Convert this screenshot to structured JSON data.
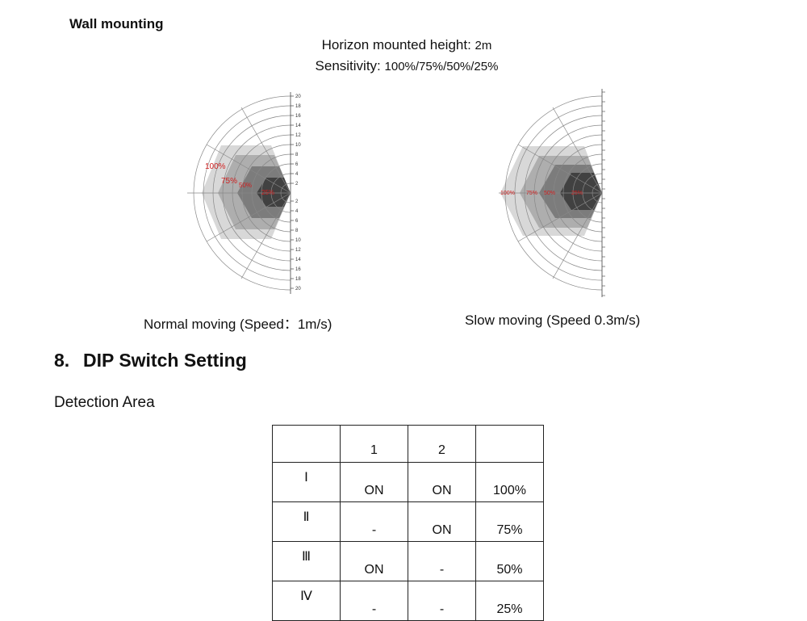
{
  "wall_title": "Wall mounting",
  "height_label": "Horizon mounted height: ",
  "height_value": "2m",
  "sensitivity_label": "Sensitivity: ",
  "sensitivity_value": "100%/75%/50%/25%",
  "diagram_normal": {
    "caption": "Normal moving (Speed：1m/s)",
    "ticks": [
      "20",
      "18",
      "16",
      "14",
      "12",
      "10",
      "8",
      "6",
      "4",
      "2",
      "2",
      "4",
      "6",
      "8",
      "10",
      "12",
      "14",
      "16",
      "18",
      "20"
    ],
    "labels": [
      "100%",
      "75%",
      "50%",
      "25%"
    ]
  },
  "diagram_slow": {
    "caption": "Slow moving (Speed 0.3m/s)",
    "labels": [
      "100%",
      "75%",
      "50%",
      "25%"
    ]
  },
  "section": {
    "number": "8.",
    "title": "DIP Switch Setting"
  },
  "detection_label": "Detection Area",
  "table": {
    "header": [
      "",
      "1",
      "2",
      ""
    ],
    "rows": [
      [
        "Ⅰ",
        "ON",
        "ON",
        "100%"
      ],
      [
        "Ⅱ",
        "-",
        "ON",
        "75%"
      ],
      [
        "Ⅲ",
        "ON",
        "-",
        "50%"
      ],
      [
        "Ⅳ",
        "-",
        "-",
        "25%"
      ]
    ]
  }
}
